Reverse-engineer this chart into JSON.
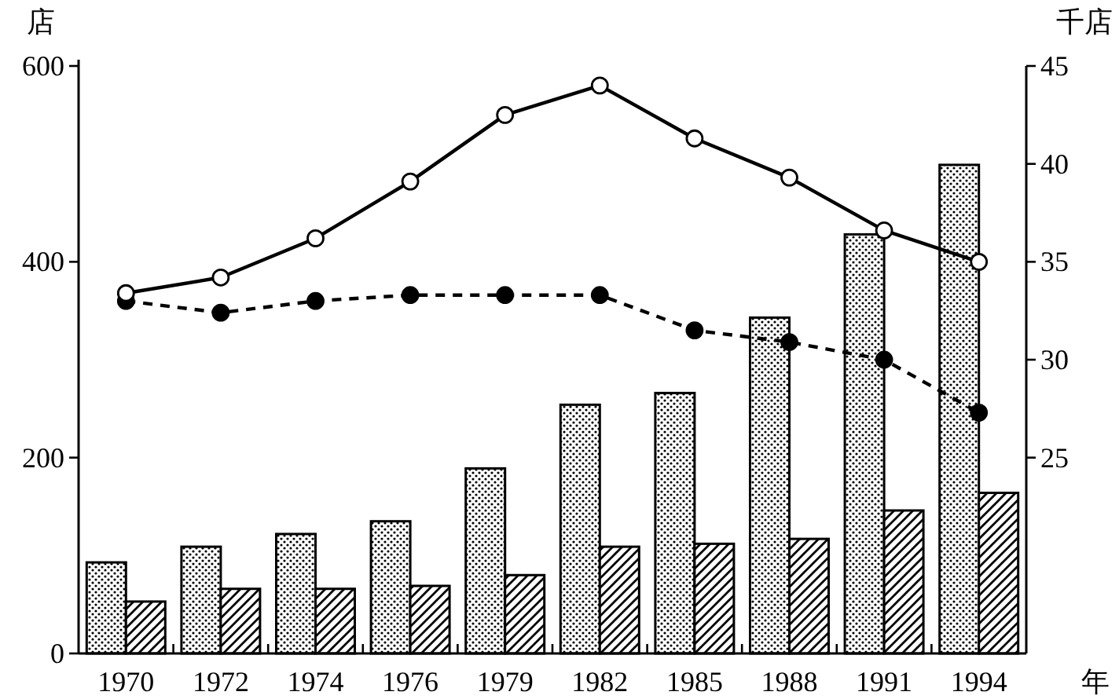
{
  "chart_data": {
    "type": "bar",
    "ylabel": "店",
    "y2label": "千店",
    "xlabel": "年",
    "categories": [
      "1970",
      "1972",
      "1974",
      "1976",
      "1979",
      "1982",
      "1985",
      "1988",
      "1991",
      "1994"
    ],
    "series": [
      {
        "color": "#000000",
        "values": [
          93,
          109,
          122,
          135,
          189,
          254,
          266,
          343,
          428,
          499
        ]
      },
      {
        "color": "#000000",
        "values": [
          53,
          66,
          66,
          69,
          80,
          109,
          112,
          117,
          146,
          164
        ]
      },
      {
        "type": "line",
        "axis": "y2",
        "color": "#000000",
        "marker": "circle",
        "line_style": "solid",
        "values": [
          33.4,
          34.2,
          36.2,
          39.1,
          42.5,
          44.0,
          41.3,
          39.3,
          36.6,
          35.0
        ]
      },
      {
        "type": "line",
        "axis": "y2",
        "color": "#000000",
        "marker": "circle",
        "line_style": "dashed",
        "values": [
          33.0,
          32.4,
          33.0,
          33.3,
          33.3,
          33.3,
          31.5,
          30.9,
          30.0,
          27.3
        ]
      }
    ],
    "ylim": [
      0,
      600
    ],
    "yticks": [
      0,
      200,
      400,
      600
    ],
    "y2lim": [
      15,
      45
    ],
    "y2ticks": [
      25,
      30,
      35,
      40,
      45
    ]
  }
}
